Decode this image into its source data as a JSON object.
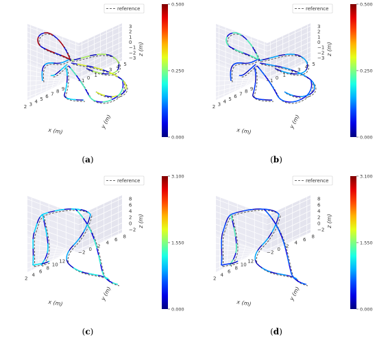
{
  "chart_data": [
    {
      "type": "line",
      "panel_label": "a",
      "legend": "reference",
      "xlabel": "x (m)",
      "ylabel": "y (m)",
      "zlabel": "z (m)",
      "x_ticks": [
        "2",
        "3",
        "4",
        "5",
        "6",
        "7",
        "8",
        "9"
      ],
      "y_ticks": [
        "−1",
        "0",
        "1",
        "2",
        "3",
        "4",
        "5"
      ],
      "z_ticks": [
        "3",
        "2",
        "1",
        "0",
        "−1",
        "−2",
        "−3"
      ],
      "colorbar": {
        "min": "0.000",
        "mid": "0.250",
        "max": "0.500"
      },
      "error_level": "high",
      "grid": true
    },
    {
      "type": "line",
      "panel_label": "b",
      "legend": "reference",
      "xlabel": "x (m)",
      "ylabel": "y (m)",
      "zlabel": "z (m)",
      "x_ticks": [
        "2",
        "3",
        "4",
        "5",
        "6",
        "7",
        "8",
        "9"
      ],
      "y_ticks": [
        "−1",
        "0",
        "1",
        "2",
        "3",
        "4",
        "5"
      ],
      "z_ticks": [
        "3",
        "2",
        "1",
        "0",
        "−1",
        "−2",
        "−3"
      ],
      "colorbar": {
        "min": "0.000",
        "mid": "0.250",
        "max": "0.500"
      },
      "error_level": "low",
      "grid": true
    },
    {
      "type": "line",
      "panel_label": "c",
      "legend": "reference",
      "xlabel": "x (m)",
      "ylabel": "y (m)",
      "zlabel": "z (m)",
      "x_ticks": [
        "2",
        "4",
        "6",
        "8",
        "10",
        "12"
      ],
      "y_ticks": [
        "−2",
        "0",
        "2",
        "4",
        "6",
        "8"
      ],
      "z_ticks": [
        "8",
        "6",
        "4",
        "2",
        "0",
        "−2"
      ],
      "colorbar": {
        "min": "0.000",
        "mid": "1.550",
        "max": "3.100"
      },
      "error_level": "mid",
      "grid": true
    },
    {
      "type": "line",
      "panel_label": "d",
      "legend": "reference",
      "xlabel": "x (m)",
      "ylabel": "y (m)",
      "zlabel": "z (m)",
      "x_ticks": [
        "2",
        "4",
        "6",
        "8",
        "10",
        "12"
      ],
      "y_ticks": [
        "−2",
        "0",
        "2",
        "4",
        "6",
        "8"
      ],
      "z_ticks": [
        "8",
        "6",
        "4",
        "2",
        "0",
        "−2"
      ],
      "colorbar": {
        "min": "0.000",
        "mid": "1.550",
        "max": "3.100"
      },
      "error_level": "low",
      "grid": true
    }
  ]
}
